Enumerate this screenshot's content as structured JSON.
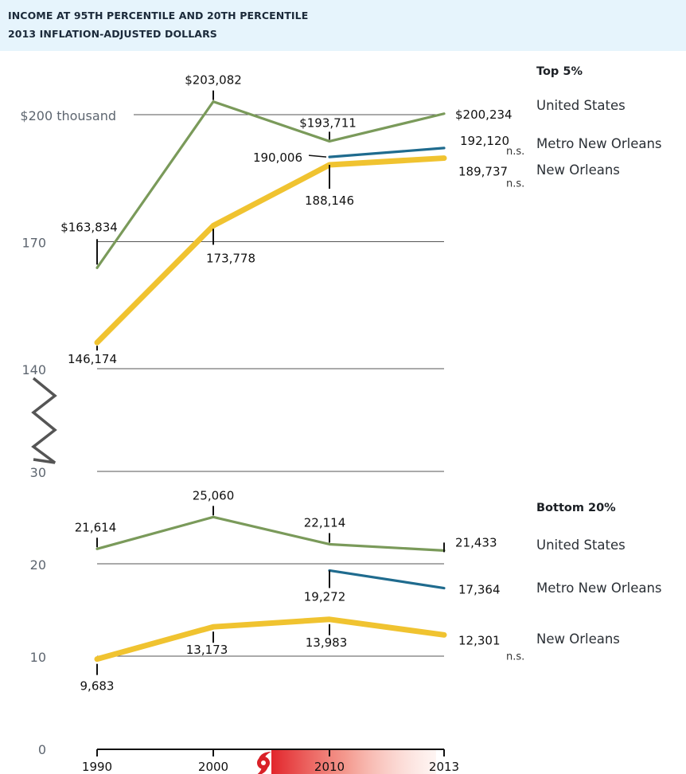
{
  "header": {
    "title": "INCOME AT 95TH PERCENTILE AND 20TH PERCENTILE",
    "subtitle": "2013 INFLATION-ADJUSTED DOLLARS",
    "background": "#e6f4fc"
  },
  "colors": {
    "united_states": "#7a9a5a",
    "metro_new_orleans": "#1f6b8e",
    "new_orleans": "#f0c330",
    "hurricane": "#d92128"
  },
  "chart_data": {
    "type": "line",
    "title": "Income at 95th percentile and 20th percentile",
    "subtitle": "2013 inflation-adjusted dollars",
    "x": [
      1990,
      2000,
      2010,
      2013
    ],
    "x_tick_labels": [
      "1990",
      "2000",
      "2010",
      "2013"
    ],
    "y_axis_break": "Axis broken between 30 and 140 (thousand)",
    "annotations": [
      "Hurricane marker with red gradient band starting ~2005"
    ],
    "panels": [
      {
        "name": "Top 5%",
        "ylim": [
          140000,
          205000
        ],
        "y_ticks": [
          {
            "value": 200000,
            "label": "$200 thousand"
          },
          {
            "value": 170000,
            "label": "170"
          },
          {
            "value": 140000,
            "label": "140"
          }
        ],
        "series": [
          {
            "name": "United States",
            "key": "united_states",
            "values": [
              163834,
              203082,
              193711,
              200234
            ],
            "labels": [
              "$163,834",
              "$203,082",
              "$193,711",
              "$200,234"
            ],
            "ns": [
              false,
              false,
              false,
              false
            ]
          },
          {
            "name": "Metro New Orleans",
            "key": "metro_new_orleans",
            "values": [
              null,
              null,
              190006,
              192120
            ],
            "labels": [
              null,
              null,
              "190,006",
              "192,120"
            ],
            "ns": [
              false,
              false,
              false,
              true
            ]
          },
          {
            "name": "New Orleans",
            "key": "new_orleans",
            "values": [
              146174,
              173778,
              188146,
              189737
            ],
            "labels": [
              "146,174",
              "173,778",
              "188,146",
              "189,737"
            ],
            "ns": [
              false,
              false,
              false,
              true
            ]
          }
        ]
      },
      {
        "name": "Bottom 20%",
        "ylim": [
          0,
          30000
        ],
        "y_ticks": [
          {
            "value": 30000,
            "label": "30"
          },
          {
            "value": 20000,
            "label": "20"
          },
          {
            "value": 10000,
            "label": "10"
          },
          {
            "value": 0,
            "label": "0"
          }
        ],
        "series": [
          {
            "name": "United States",
            "key": "united_states",
            "values": [
              21614,
              25060,
              22114,
              21433
            ],
            "labels": [
              "21,614",
              "25,060",
              "22,114",
              "21,433"
            ],
            "ns": [
              false,
              false,
              false,
              false
            ]
          },
          {
            "name": "Metro New Orleans",
            "key": "metro_new_orleans",
            "values": [
              null,
              null,
              19272,
              17364
            ],
            "labels": [
              null,
              null,
              "19,272",
              "17,364"
            ],
            "ns": [
              false,
              false,
              false,
              false
            ]
          },
          {
            "name": "New Orleans",
            "key": "new_orleans",
            "values": [
              9683,
              13173,
              13983,
              12301
            ],
            "labels": [
              "9,683",
              "13,173",
              "13,983",
              "12,301"
            ],
            "ns": [
              false,
              false,
              false,
              true
            ]
          }
        ]
      }
    ],
    "ns_label": "n.s."
  }
}
